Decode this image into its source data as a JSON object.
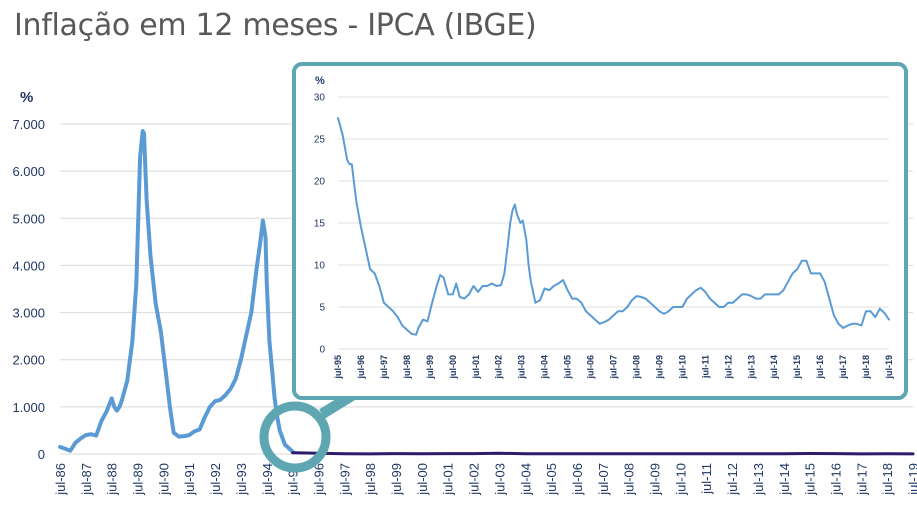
{
  "title": "Inflação em 12 meses - IPCA (IBGE)",
  "colors": {
    "title": "#595959",
    "series": "#5b9bd5",
    "post_real": "#2e1a6b",
    "inset_frame": "#5fa6b3",
    "grid": "#d9d9d9",
    "axis_text": "#1f3864"
  },
  "chart_data": [
    {
      "type": "line",
      "ylabel": "%",
      "ylim": [
        0,
        7000
      ],
      "y_ticks": [
        "0",
        "1.000",
        "2.000",
        "3.000",
        "4.000",
        "5.000",
        "6.000",
        "7.000"
      ],
      "categories": [
        "jul-86",
        "jul-87",
        "jul-88",
        "jul-89",
        "jul-90",
        "jul-91",
        "jul-92",
        "jul-93",
        "jul-94",
        "jul-95",
        "jul-96",
        "jul-97",
        "jul-98",
        "jul-99",
        "jul-00",
        "jul-01",
        "jul-02",
        "jul-03",
        "jul-04",
        "jul-05",
        "jul-06",
        "jul-07",
        "jul-08",
        "jul-09",
        "jul-10",
        "jul-11",
        "jul-12",
        "jul-13",
        "jul-14",
        "jul-15",
        "jul-16",
        "jul-17",
        "jul-18",
        "jul-19"
      ],
      "grid": "horizontal",
      "annotation": "zoom circle around jul-95 linked to inset",
      "series": [
        {
          "x": [
            1986.5,
            1986.7,
            1986.9,
            1987.1,
            1987.3,
            1987.5,
            1987.7,
            1987.9,
            1988.1,
            1988.3,
            1988.5,
            1988.6,
            1988.7,
            1988.8,
            1988.9,
            1989.1,
            1989.3,
            1989.45,
            1989.6,
            1989.7,
            1989.75,
            1989.85,
            1990.0,
            1990.2,
            1990.4,
            1990.6,
            1990.75,
            1990.9,
            1991.1,
            1991.3,
            1991.5,
            1991.7,
            1991.9,
            1992.1,
            1992.3,
            1992.5,
            1992.7,
            1992.9,
            1993.1,
            1993.3,
            1993.5,
            1993.7,
            1993.9,
            1994.1,
            1994.25,
            1994.35,
            1994.45,
            1994.5,
            1994.6,
            1994.7,
            1994.8,
            1994.9,
            1995.0,
            1995.2,
            1995.5
          ],
          "y": [
            150,
            110,
            70,
            240,
            330,
            400,
            420,
            390,
            700,
            900,
            1180,
            1000,
            920,
            1000,
            1150,
            1550,
            2400,
            3600,
            6300,
            6850,
            6800,
            5400,
            4200,
            3200,
            2600,
            1700,
            1000,
            450,
            370,
            380,
            400,
            480,
            520,
            780,
            1000,
            1120,
            1150,
            1250,
            1380,
            1600,
            2000,
            2500,
            3000,
            3900,
            4500,
            4950,
            4600,
            3600,
            2400,
            1800,
            1200,
            800,
            500,
            200,
            50
          ]
        },
        {
          "x": [
            1995.5,
            1996.5,
            1997.5,
            1998.5,
            1999.5,
            2000.5,
            2001.5,
            2002.5,
            2003.5,
            2004.5,
            2005.5,
            2006.5,
            2007.5,
            2008.5,
            2009.5,
            2010.5,
            2011.5,
            2012.5,
            2013.5,
            2014.5,
            2015.5,
            2016.5,
            2017.5,
            2018.5,
            2019.5
          ],
          "y": [
            27,
            15,
            6,
            3,
            9,
            7,
            8,
            8,
            15,
            7,
            7,
            4,
            4,
            6,
            5,
            5,
            7,
            5,
            6,
            6,
            10,
            9,
            3,
            4,
            3
          ]
        }
      ]
    },
    {
      "type": "line",
      "ylabel": "%",
      "ylim": [
        0,
        30
      ],
      "y_ticks": [
        "0",
        "5",
        "10",
        "15",
        "20",
        "25",
        "30"
      ],
      "categories": [
        "jul-95",
        "jul-96",
        "jul-97",
        "jul-98",
        "jul-99",
        "jul-00",
        "jul-01",
        "jul-02",
        "jul-03",
        "jul-04",
        "jul-05",
        "jul-06",
        "jul-07",
        "jul-08",
        "jul-09",
        "jul-10",
        "jul-11",
        "jul-12",
        "jul-13",
        "jul-14",
        "jul-15",
        "jul-16",
        "jul-17",
        "jul-18",
        "jul-19"
      ],
      "grid": "horizontal",
      "series": [
        {
          "x": [
            1995.5,
            1995.7,
            1995.9,
            1996.0,
            1996.1,
            1996.3,
            1996.5,
            1996.7,
            1996.9,
            1997.1,
            1997.3,
            1997.5,
            1997.7,
            1997.9,
            1998.1,
            1998.3,
            1998.5,
            1998.7,
            1998.9,
            1999.0,
            1999.2,
            1999.4,
            1999.6,
            1999.8,
            1999.95,
            2000.1,
            2000.3,
            2000.5,
            2000.65,
            2000.8,
            2001.0,
            2001.2,
            2001.4,
            2001.6,
            2001.8,
            2002.0,
            2002.2,
            2002.4,
            2002.6,
            2002.75,
            2002.9,
            2003.0,
            2003.1,
            2003.2,
            2003.3,
            2003.45,
            2003.55,
            2003.7,
            2003.8,
            2003.9,
            2004.1,
            2004.3,
            2004.5,
            2004.7,
            2004.9,
            2005.1,
            2005.3,
            2005.5,
            2005.7,
            2005.9,
            2006.1,
            2006.3,
            2006.5,
            2006.7,
            2006.9,
            2007.1,
            2007.3,
            2007.5,
            2007.7,
            2007.9,
            2008.1,
            2008.3,
            2008.5,
            2008.7,
            2008.9,
            2009.1,
            2009.3,
            2009.5,
            2009.7,
            2009.9,
            2010.1,
            2010.3,
            2010.5,
            2010.7,
            2010.9,
            2011.1,
            2011.3,
            2011.5,
            2011.7,
            2011.9,
            2012.1,
            2012.3,
            2012.5,
            2012.7,
            2012.9,
            2013.1,
            2013.3,
            2013.5,
            2013.7,
            2013.9,
            2014.1,
            2014.3,
            2014.5,
            2014.7,
            2014.9,
            2015.1,
            2015.3,
            2015.5,
            2015.7,
            2015.9,
            2016.1,
            2016.3,
            2016.5,
            2016.7,
            2016.9,
            2017.1,
            2017.3,
            2017.5,
            2017.7,
            2017.9,
            2018.1,
            2018.3,
            2018.5,
            2018.7,
            2018.9,
            2019.1,
            2019.3,
            2019.5
          ],
          "y": [
            27.5,
            25.5,
            22.5,
            22,
            22,
            17.5,
            14.5,
            12,
            9.5,
            9,
            7.5,
            5.5,
            5,
            4.5,
            3.8,
            2.8,
            2.3,
            1.8,
            1.7,
            2.5,
            3.5,
            3.3,
            5.5,
            7.5,
            8.8,
            8.5,
            6.5,
            6.5,
            7.8,
            6.2,
            6,
            6.5,
            7.5,
            6.8,
            7.5,
            7.5,
            7.8,
            7.5,
            7.6,
            9,
            12.5,
            15,
            16.5,
            17.2,
            16,
            15,
            15.3,
            13,
            10,
            8,
            5.5,
            5.8,
            7.2,
            7,
            7.5,
            7.8,
            8.2,
            7,
            6,
            6,
            5.5,
            4.5,
            4,
            3.5,
            3,
            3.2,
            3.5,
            4,
            4.5,
            4.5,
            5,
            5.8,
            6.3,
            6.2,
            6,
            5.5,
            5,
            4.5,
            4.2,
            4.5,
            5,
            5,
            5,
            6,
            6.5,
            7,
            7.3,
            6.8,
            6,
            5.5,
            5,
            5,
            5.5,
            5.5,
            6,
            6.5,
            6.5,
            6.3,
            6,
            6,
            6.5,
            6.5,
            6.5,
            6.5,
            7,
            8,
            9,
            9.5,
            10.5,
            10.5,
            9,
            9,
            9,
            8,
            6,
            4,
            3,
            2.5,
            2.8,
            3,
            3,
            2.8,
            4.5,
            4.5,
            3.8,
            4.8,
            4.3,
            3.5
          ]
        }
      ]
    }
  ]
}
